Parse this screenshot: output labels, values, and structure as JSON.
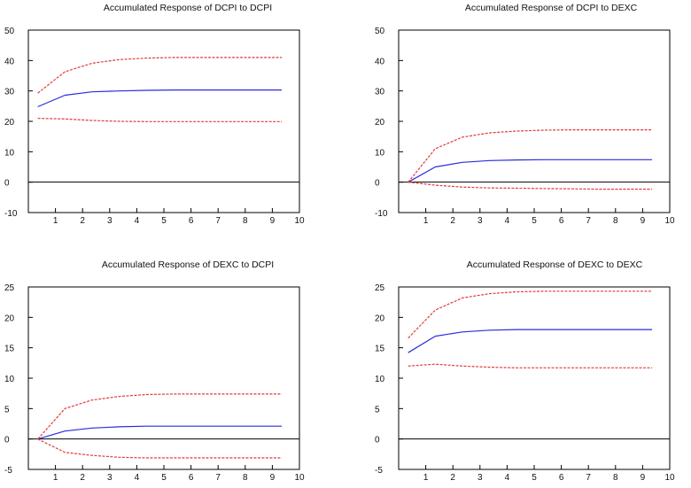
{
  "chart_data": [
    {
      "type": "line",
      "title": "Accumulated Response of DCPI to DCPI",
      "x": [
        0.35,
        1.35,
        2.35,
        3.35,
        4.35,
        5.35,
        6.35,
        7.35,
        8.35,
        9.35
      ],
      "ylim": [
        -10,
        50
      ],
      "yticks": [
        -10,
        0,
        10,
        20,
        30,
        40,
        50
      ],
      "xlim": [
        0,
        10
      ],
      "xticks": [
        1,
        2,
        3,
        4,
        5,
        6,
        7,
        8,
        9,
        10
      ],
      "zero_line": true,
      "grid": false,
      "series": [
        {
          "role": "response",
          "color": "#2b2bdd",
          "style": "solid",
          "values": [
            24.8,
            28.6,
            29.7,
            30.0,
            30.2,
            30.3,
            30.3,
            30.3,
            30.3,
            30.3
          ]
        },
        {
          "role": "upper band",
          "color": "#e23a3a",
          "style": "dashed",
          "values": [
            29.3,
            36.3,
            39.1,
            40.3,
            40.8,
            41.0,
            41.0,
            41.0,
            41.0,
            41.0
          ]
        },
        {
          "role": "lower band",
          "color": "#e23a3a",
          "style": "dashed",
          "values": [
            21.0,
            20.8,
            20.3,
            20.0,
            19.9,
            19.9,
            19.9,
            19.9,
            19.9,
            19.9
          ]
        }
      ]
    },
    {
      "type": "line",
      "title": "Accumulated Response of DCPI to DEXC",
      "x": [
        0.35,
        1.35,
        2.35,
        3.35,
        4.35,
        5.35,
        6.35,
        7.35,
        8.35,
        9.35
      ],
      "ylim": [
        -10,
        50
      ],
      "yticks": [
        -10,
        0,
        10,
        20,
        30,
        40,
        50
      ],
      "xlim": [
        0,
        10
      ],
      "xticks": [
        1,
        2,
        3,
        4,
        5,
        6,
        7,
        8,
        9,
        10
      ],
      "zero_line": true,
      "grid": false,
      "series": [
        {
          "role": "response",
          "color": "#2b2bdd",
          "style": "solid",
          "values": [
            0.0,
            5.0,
            6.5,
            7.1,
            7.3,
            7.4,
            7.4,
            7.4,
            7.4,
            7.4
          ]
        },
        {
          "role": "upper band",
          "color": "#e23a3a",
          "style": "dashed",
          "values": [
            0.0,
            11.0,
            14.8,
            16.2,
            16.8,
            17.1,
            17.2,
            17.2,
            17.2,
            17.2
          ]
        },
        {
          "role": "lower band",
          "color": "#e23a3a",
          "style": "dashed",
          "values": [
            0.0,
            -1.0,
            -1.6,
            -1.9,
            -2.0,
            -2.1,
            -2.2,
            -2.3,
            -2.3,
            -2.3
          ]
        }
      ]
    },
    {
      "type": "line",
      "title": "Accumulated Response of DEXC to DCPI",
      "x": [
        0.35,
        1.35,
        2.35,
        3.35,
        4.35,
        5.35,
        6.35,
        7.35,
        8.35,
        9.35
      ],
      "ylim": [
        -5,
        25
      ],
      "yticks": [
        -5,
        0,
        5,
        10,
        15,
        20,
        25
      ],
      "xlim": [
        0,
        10
      ],
      "xticks": [
        1,
        2,
        3,
        4,
        5,
        6,
        7,
        8,
        9,
        10
      ],
      "zero_line": true,
      "grid": false,
      "series": [
        {
          "role": "response",
          "color": "#2b2bdd",
          "style": "solid",
          "values": [
            0.0,
            1.3,
            1.8,
            2.0,
            2.1,
            2.1,
            2.1,
            2.1,
            2.1,
            2.1
          ]
        },
        {
          "role": "upper band",
          "color": "#e23a3a",
          "style": "dashed",
          "values": [
            0.0,
            5.0,
            6.4,
            7.0,
            7.3,
            7.4,
            7.4,
            7.4,
            7.4,
            7.4
          ]
        },
        {
          "role": "lower band",
          "color": "#e23a3a",
          "style": "dashed",
          "values": [
            0.0,
            -2.2,
            -2.7,
            -3.0,
            -3.1,
            -3.1,
            -3.1,
            -3.1,
            -3.1,
            -3.1
          ]
        }
      ]
    },
    {
      "type": "line",
      "title": "Accumulated Response of DEXC to DEXC",
      "x": [
        0.35,
        1.35,
        2.35,
        3.35,
        4.35,
        5.35,
        6.35,
        7.35,
        8.35,
        9.35
      ],
      "ylim": [
        -5,
        25
      ],
      "yticks": [
        -5,
        0,
        5,
        10,
        15,
        20,
        25
      ],
      "xlim": [
        0,
        10
      ],
      "xticks": [
        1,
        2,
        3,
        4,
        5,
        6,
        7,
        8,
        9,
        10
      ],
      "zero_line": true,
      "grid": false,
      "series": [
        {
          "role": "response",
          "color": "#2b2bdd",
          "style": "solid",
          "values": [
            14.2,
            16.9,
            17.6,
            17.9,
            18.0,
            18.0,
            18.0,
            18.0,
            18.0,
            18.0
          ]
        },
        {
          "role": "upper band",
          "color": "#e23a3a",
          "style": "dashed",
          "values": [
            16.6,
            21.2,
            23.2,
            23.9,
            24.2,
            24.3,
            24.3,
            24.3,
            24.3,
            24.3
          ]
        },
        {
          "role": "lower band",
          "color": "#e23a3a",
          "style": "dashed",
          "values": [
            12.0,
            12.3,
            12.0,
            11.8,
            11.7,
            11.7,
            11.7,
            11.7,
            11.7,
            11.7
          ]
        }
      ]
    }
  ]
}
